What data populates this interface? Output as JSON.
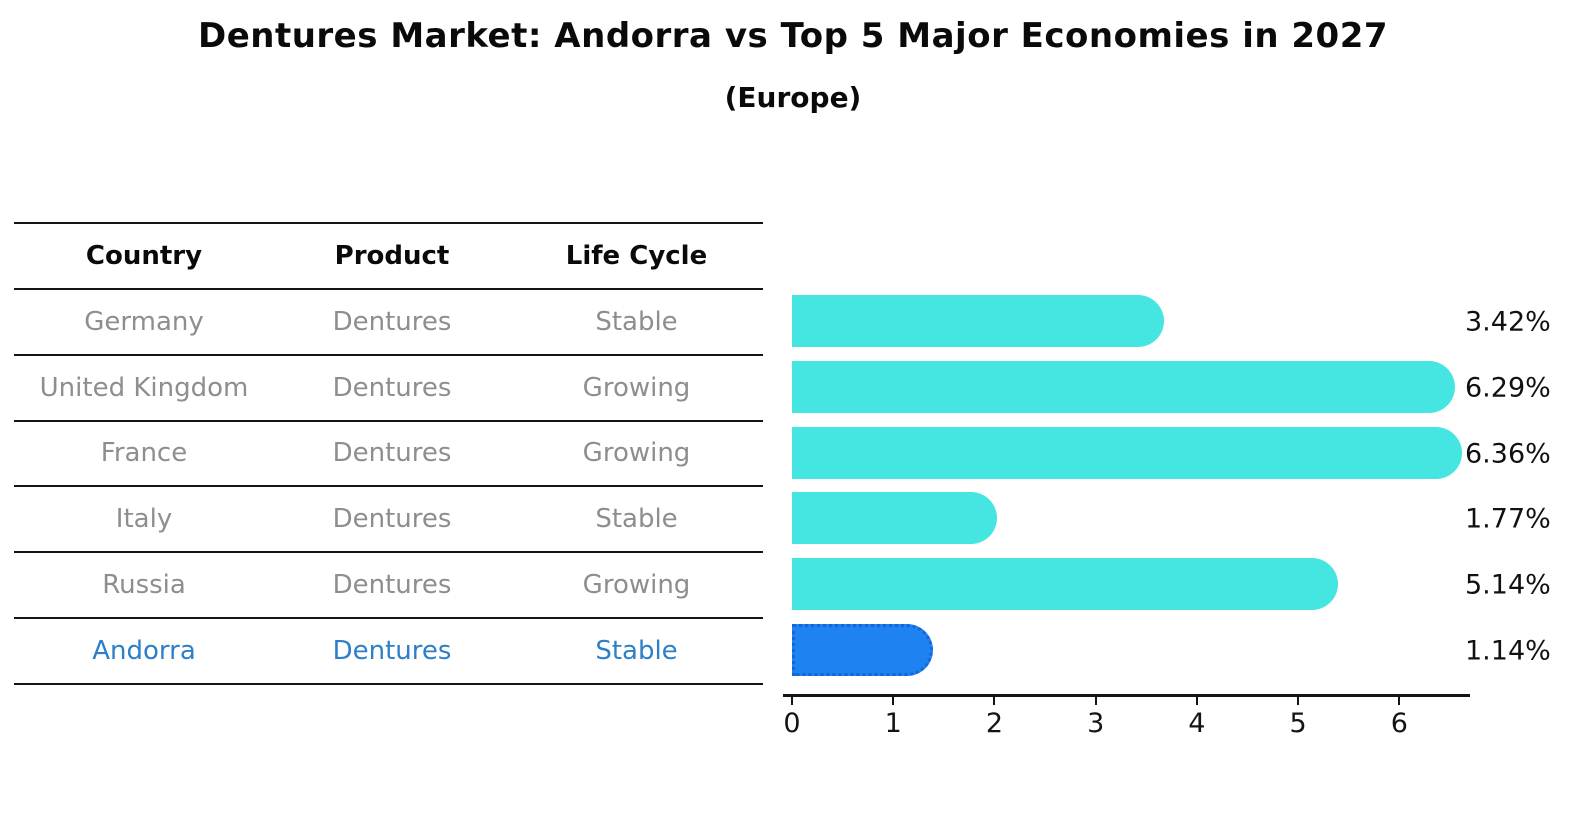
{
  "title": "Dentures Market: Andorra vs Top 5 Major Economies in 2027",
  "subtitle": "(Europe)",
  "table": {
    "headers": [
      "Country",
      "Product",
      "Life Cycle"
    ],
    "rows": [
      {
        "country": "Germany",
        "product": "Dentures",
        "life_cycle": "Stable",
        "highlight": false
      },
      {
        "country": "United Kingdom",
        "product": "Dentures",
        "life_cycle": "Growing",
        "highlight": false
      },
      {
        "country": "France",
        "product": "Dentures",
        "life_cycle": "Growing",
        "highlight": false
      },
      {
        "country": "Italy",
        "product": "Dentures",
        "life_cycle": "Stable",
        "highlight": false
      },
      {
        "country": "Russia",
        "product": "Dentures",
        "life_cycle": "Growing",
        "highlight": false
      },
      {
        "country": "Andorra",
        "product": "Dentures",
        "life_cycle": "Stable",
        "highlight": true
      }
    ]
  },
  "chart_data": {
    "type": "bar",
    "orientation": "horizontal",
    "title": "Dentures Market: Andorra vs Top 5 Major Economies in 2027",
    "subtitle": "(Europe)",
    "categories": [
      "Germany",
      "United Kingdom",
      "France",
      "Italy",
      "Russia",
      "Andorra"
    ],
    "values": [
      3.42,
      6.29,
      6.36,
      1.77,
      5.14,
      1.14
    ],
    "value_labels": [
      "3.42%",
      "6.29%",
      "6.36%",
      "1.77%",
      "5.14%",
      "1.14%"
    ],
    "unit": "percent",
    "x_ticks": [
      "0",
      "1",
      "2",
      "3",
      "4",
      "5",
      "6"
    ],
    "xlim": [
      0,
      6.55
    ],
    "grid": false,
    "legend": null,
    "highlight_index": 5,
    "bar_color": "#45e6e2",
    "highlight_bar_color": "#1e82f0",
    "highlight_bar_border_color": "#1565d8",
    "highlight_text_color": "#2e7fc9",
    "row_text_color": "#8e8e8e",
    "axis_color": "#141414"
  }
}
